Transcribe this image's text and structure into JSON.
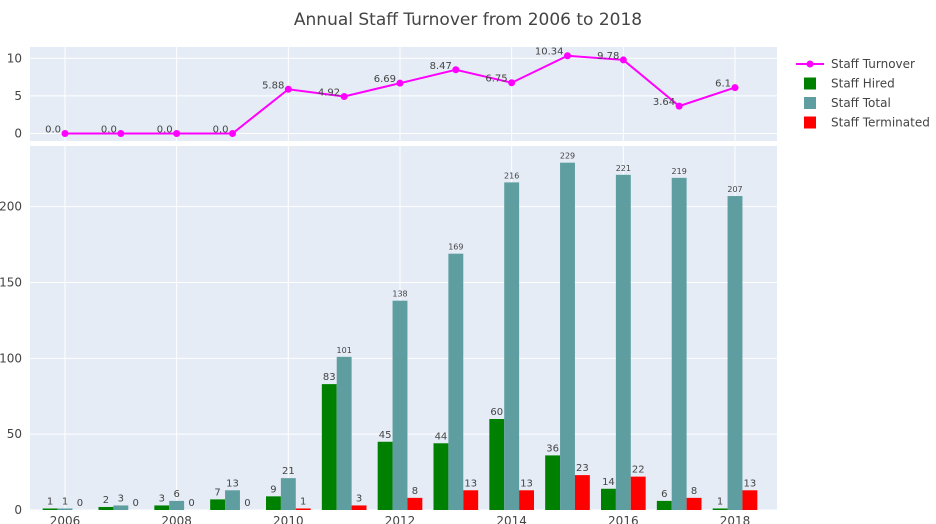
{
  "chart_data": {
    "title": "Annual Staff Turnover from 2006 to 2018",
    "x": [
      2006,
      2007,
      2008,
      2009,
      2010,
      2011,
      2012,
      2013,
      2014,
      2015,
      2016,
      2017,
      2018
    ],
    "x_tick_labels": [
      "2006",
      "2008",
      "2010",
      "2012",
      "2014",
      "2016",
      "2018"
    ],
    "legend_position": "top-right",
    "grid": true,
    "top_panel": {
      "type": "line",
      "ylim": [
        -1,
        11.5
      ],
      "y_ticks": [
        0,
        5,
        10
      ],
      "series": [
        {
          "name": "Staff Turnover",
          "color": "#ff00ff",
          "values": [
            0,
            0,
            0,
            0,
            5.88,
            4.92,
            6.69,
            8.47,
            6.75,
            10.34,
            9.78,
            3.64,
            6.1
          ],
          "labels": [
            "0.0",
            "0.0",
            "0.0",
            "0.0",
            "5.88",
            "4.92",
            "6.69",
            "8.47",
            "6.75",
            "10.34",
            "9.78",
            "3.64",
            "6.1"
          ]
        }
      ]
    },
    "bottom_panel": {
      "type": "bar",
      "ylim": [
        0,
        240
      ],
      "y_ticks": [
        0,
        50,
        100,
        150,
        200
      ],
      "series": [
        {
          "name": "Staff Hired",
          "color": "#008000",
          "values": [
            1,
            2,
            3,
            7,
            9,
            83,
            45,
            44,
            60,
            36,
            14,
            6,
            1
          ],
          "show_labels": [
            true,
            true,
            true,
            true,
            true,
            true,
            true,
            true,
            true,
            true,
            true,
            true,
            true
          ]
        },
        {
          "name": "Staff Total",
          "color": "#5f9ea0",
          "values": [
            1,
            3,
            6,
            13,
            21,
            101,
            138,
            169,
            216,
            229,
            221,
            219,
            207
          ],
          "show_labels": [
            true,
            true,
            true,
            true,
            true,
            true,
            true,
            true,
            true,
            true,
            true,
            true,
            true
          ]
        },
        {
          "name": "Staff Terminated",
          "color": "#ff0000",
          "values": [
            0,
            0,
            0,
            0,
            1,
            3,
            8,
            13,
            13,
            23,
            22,
            8,
            13
          ],
          "show_labels": [
            true,
            true,
            true,
            true,
            true,
            true,
            true,
            true,
            true,
            true,
            true,
            true,
            true
          ]
        }
      ]
    }
  }
}
